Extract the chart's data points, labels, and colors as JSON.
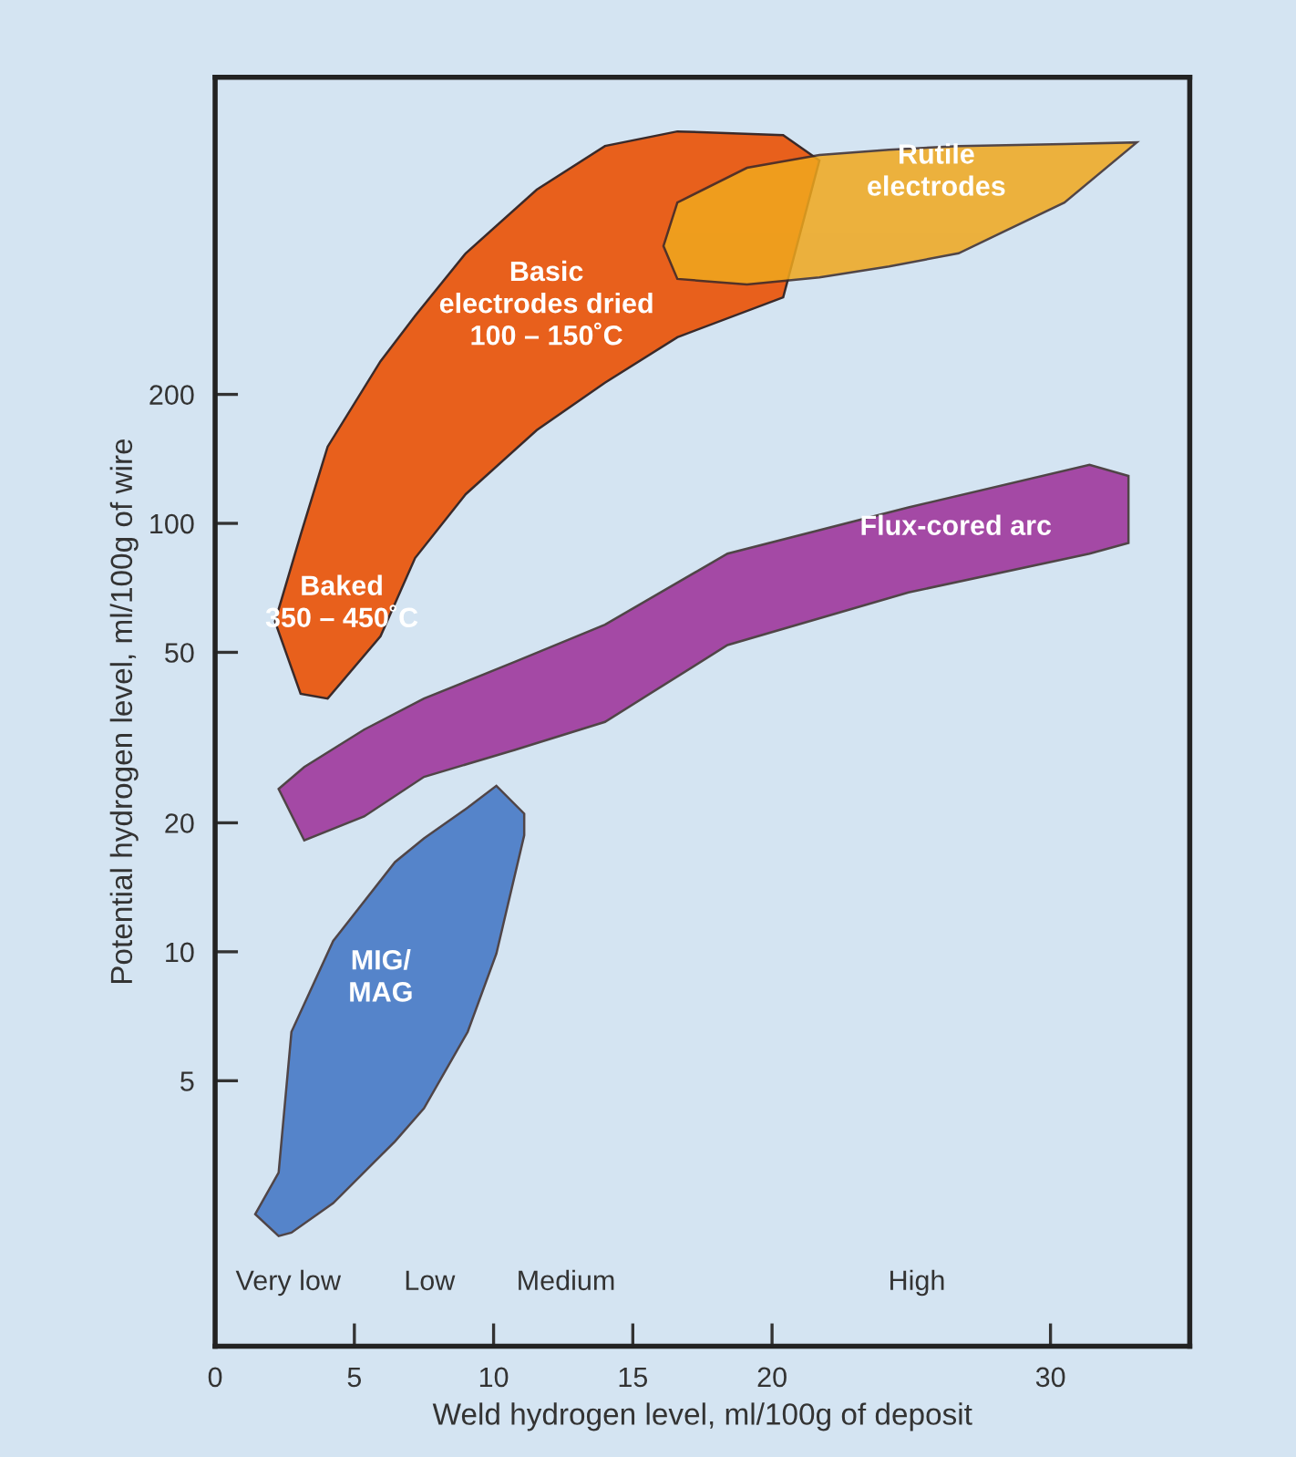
{
  "chart_data": {
    "type": "area",
    "xlabel": "Weld hydrogen level, ml/100g of deposit",
    "ylabel": "Potential hydrogen level, ml/100g of wire",
    "log": "y",
    "xlim": [
      0,
      35
    ],
    "ylim": [
      1.2,
      1100
    ],
    "xticks": [
      0,
      5,
      10,
      15,
      20,
      30
    ],
    "yticks": [
      5,
      10,
      20,
      50,
      100,
      200
    ],
    "grid": false,
    "series": [
      {
        "color": "#e8601c",
        "x": [
          2.15,
          3.07,
          4.04,
          5.94,
          7.18,
          9.0,
          11.55,
          14.0,
          16.6,
          20.4,
          21.7,
          20.4,
          16.6,
          14.0,
          11.55,
          9.0,
          7.18,
          5.94,
          4.04,
          3.07
        ],
        "values": [
          59,
          94,
          151,
          239,
          305,
          427,
          601,
          760,
          822,
          806,
          703,
          337,
          272,
          213,
          165,
          117,
          83,
          54.5,
          39,
          40
        ]
      },
      {
        "color": "#f0a81e",
        "x": [
          16.1,
          16.6,
          19.1,
          21.7,
          24.2,
          26.7,
          30.5,
          33.1,
          30.5,
          26.7,
          24.2,
          21.7,
          19.1,
          16.6
        ],
        "values": [
          444,
          561,
          676,
          724,
          745,
          760,
          768,
          775,
          561,
          427,
          398,
          375,
          361,
          372
        ]
      },
      {
        "color": "#9c2f98",
        "x": [
          2.28,
          3.2,
          5.35,
          7.5,
          10.76,
          14.0,
          18.4,
          24.9,
          31.4,
          32.8,
          32.8,
          31.4,
          24.9,
          18.4,
          14.0,
          10.76,
          7.5,
          5.35,
          3.2
        ],
        "values": [
          24,
          27,
          33,
          39,
          47.5,
          58,
          85,
          109,
          137,
          129,
          90,
          85,
          69,
          52,
          34.4,
          29.6,
          25.6,
          20.7,
          18.2
        ]
      },
      {
        "color": "#3f74c4",
        "x": [
          1.44,
          2.28,
          2.74,
          4.24,
          6.46,
          7.5,
          9.07,
          10.1,
          11.1,
          11.1,
          10.1,
          9.07,
          7.5,
          6.46,
          4.24,
          2.74,
          2.28
        ],
        "values": [
          2.44,
          3.05,
          6.5,
          10.6,
          16.2,
          18.4,
          21.7,
          24.4,
          21,
          18.7,
          9.9,
          6.5,
          4.31,
          3.61,
          2.59,
          2.21,
          2.17
        ]
      }
    ],
    "annotations": [
      "Basic\nelectrodes dried\n100 – 150˚C",
      "Rutile\nelectrodes",
      "Baked\n350 – 450˚C",
      "Flux-cored arc",
      "MIG/\nMAG",
      "Very low",
      "Low",
      "Medium",
      "High"
    ]
  }
}
